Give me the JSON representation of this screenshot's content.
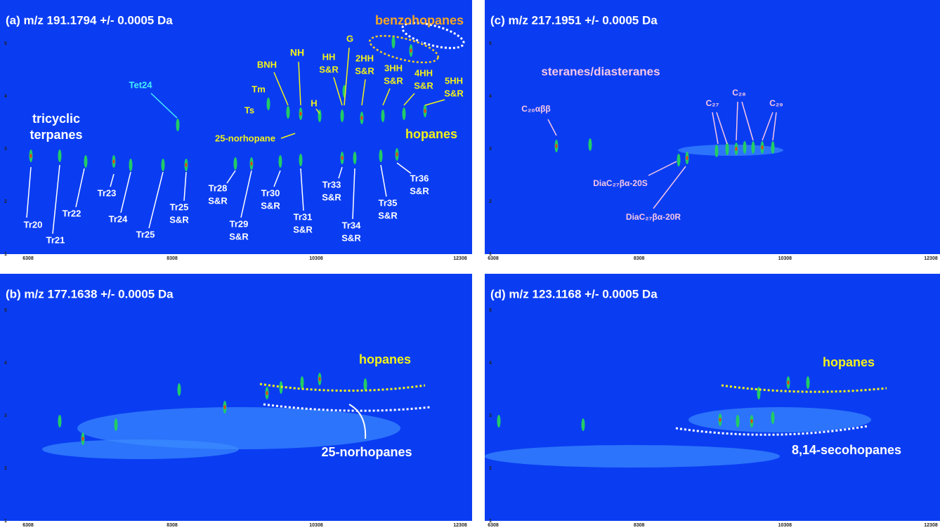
{
  "panels": [
    {
      "title": "(a) m/z 191.1794 +/- 0.0005 Da",
      "xticks": [
        6308,
        8308,
        10308,
        12308
      ],
      "yticks": [
        1,
        2,
        3,
        4,
        5
      ],
      "labels": [
        {
          "lines": [
            "tricyclic",
            "terpanes"
          ]
        },
        {
          "lines": [
            "Tet24"
          ]
        },
        {
          "lines": [
            "benzohopanes"
          ]
        },
        {
          "lines": [
            "hopanes"
          ]
        },
        {
          "lines": [
            "25-norhopane"
          ]
        },
        {
          "lines": [
            "Ts"
          ]
        },
        {
          "lines": [
            "Tm"
          ]
        },
        {
          "lines": [
            "BNH"
          ]
        },
        {
          "lines": [
            "NH"
          ]
        },
        {
          "lines": [
            "H"
          ]
        },
        {
          "lines": [
            "G"
          ]
        },
        {
          "lines": [
            "HH",
            "S&R"
          ]
        },
        {
          "lines": [
            "2HH",
            "S&R"
          ]
        },
        {
          "lines": [
            "3HH",
            "S&R"
          ]
        },
        {
          "lines": [
            "4HH",
            "S&R"
          ]
        },
        {
          "lines": [
            "5HH",
            "S&R"
          ]
        },
        {
          "lines": [
            "Tr20"
          ]
        },
        {
          "lines": [
            "Tr21"
          ]
        },
        {
          "lines": [
            "Tr22"
          ]
        },
        {
          "lines": [
            "Tr23"
          ]
        },
        {
          "lines": [
            "Tr24"
          ]
        },
        {
          "lines": [
            "Tr25"
          ]
        },
        {
          "lines": [
            "Tr25",
            "S&R"
          ]
        },
        {
          "lines": [
            "Tr28",
            "S&R"
          ]
        },
        {
          "lines": [
            "Tr29",
            "S&R"
          ]
        },
        {
          "lines": [
            "Tr30",
            "S&R"
          ]
        },
        {
          "lines": [
            "Tr31",
            "S&R"
          ]
        },
        {
          "lines": [
            "Tr33",
            "S&R"
          ]
        },
        {
          "lines": [
            "Tr34",
            "S&R"
          ]
        },
        {
          "lines": [
            "Tr35",
            "S&R"
          ]
        },
        {
          "lines": [
            "Tr36",
            "S&R"
          ]
        }
      ]
    },
    {
      "title": "(b) m/z 177.1638 +/- 0.0005 Da",
      "xticks": [
        6308,
        8308,
        10308,
        12308
      ],
      "yticks": [
        1,
        2,
        3,
        4,
        5
      ],
      "labels": [
        {
          "lines": [
            "hopanes"
          ]
        },
        {
          "lines": [
            "25-norhopanes"
          ]
        }
      ]
    },
    {
      "title": "(c) m/z 217.1951 +/- 0.0005 Da",
      "xticks": [
        6308,
        8308,
        10308,
        12308
      ],
      "yticks": [
        1,
        2,
        3,
        4,
        5
      ],
      "labels": [
        {
          "lines": [
            "steranes/diasteranes"
          ]
        },
        {
          "lines": [
            "C₂₀αββ"
          ]
        },
        {
          "lines": [
            "C₂₇"
          ]
        },
        {
          "lines": [
            "C₂₈"
          ]
        },
        {
          "lines": [
            "C₂₉"
          ]
        },
        {
          "lines": [
            "DiaC₂₇βα-20S"
          ]
        },
        {
          "lines": [
            "DiaC₂₇βα-20R"
          ]
        }
      ]
    },
    {
      "title": "(d) m/z 123.1168 +/- 0.0005 Da",
      "xticks": [
        6308,
        8308,
        10308,
        12308
      ],
      "yticks": [
        1,
        2,
        3,
        4,
        5
      ],
      "labels": [
        {
          "lines": [
            "hopanes"
          ]
        },
        {
          "lines": [
            "8,14-secohopanes"
          ]
        }
      ]
    }
  ]
}
